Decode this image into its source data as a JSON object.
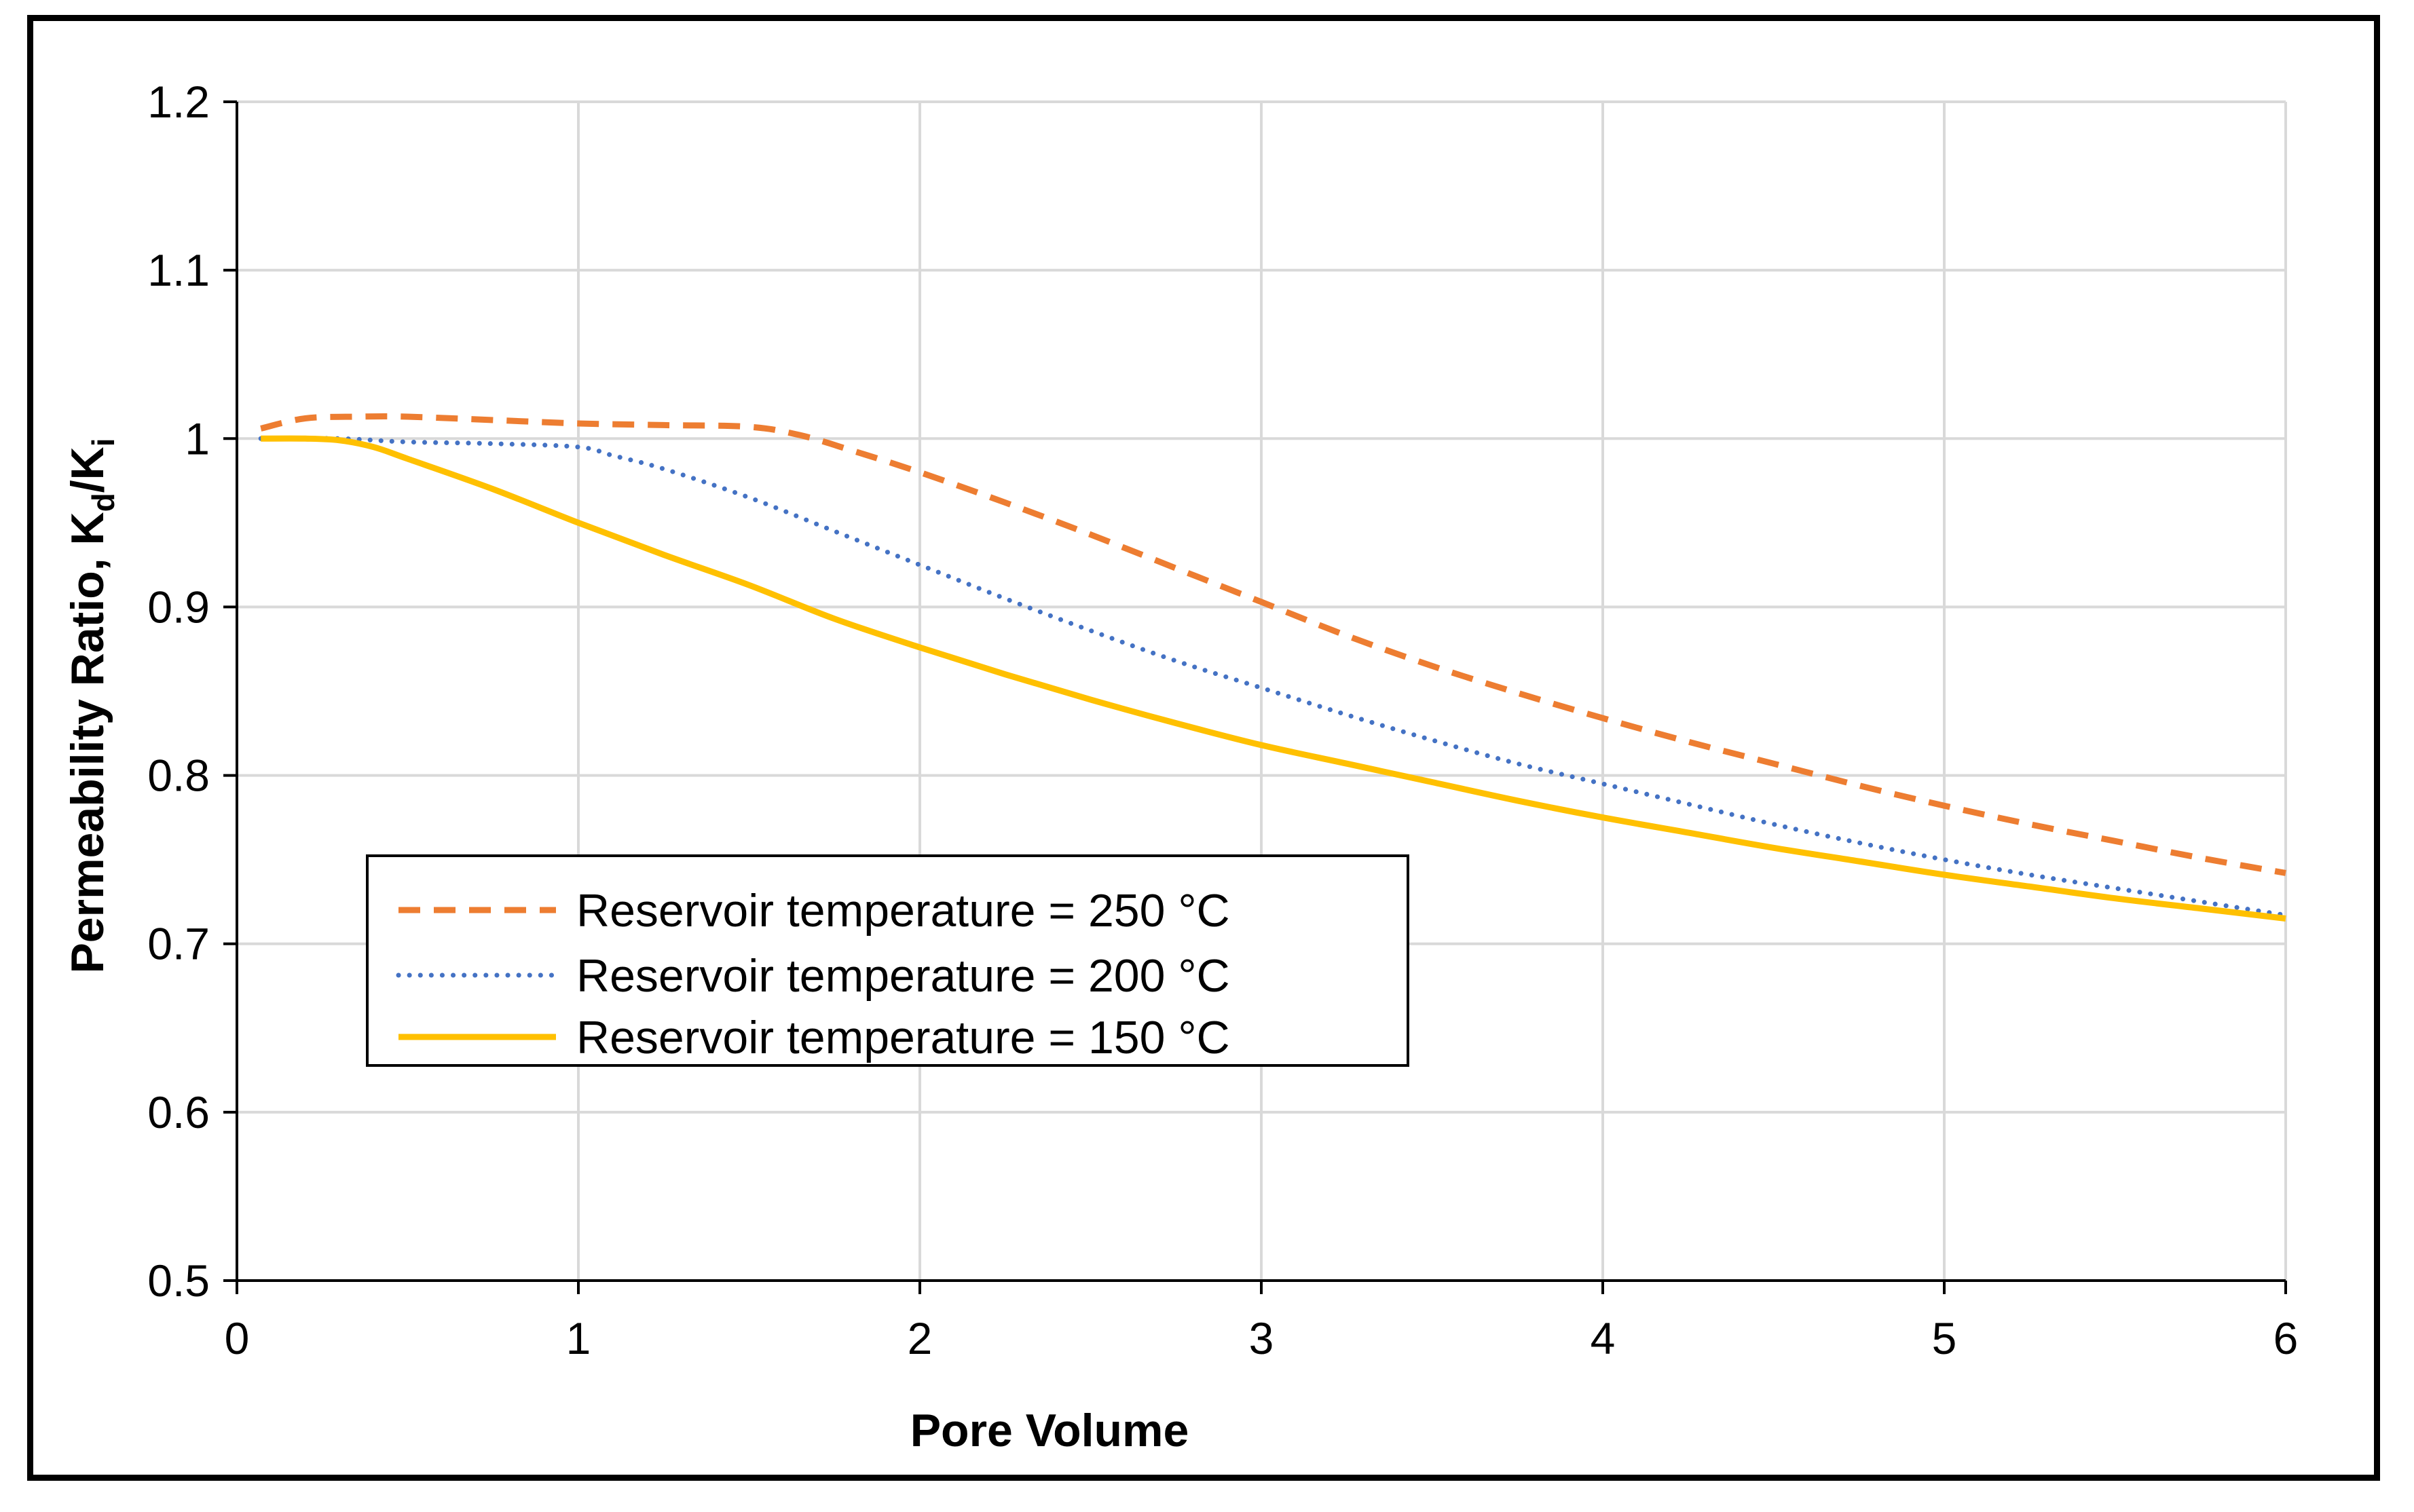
{
  "chart_data": {
    "type": "line",
    "title": "",
    "xlabel": "Pore Volume",
    "ylabel": {
      "main": "Permeability Ratio, K",
      "sub1": "d",
      "slash": "/K",
      "sub2": "i"
    },
    "xlim": [
      0,
      6
    ],
    "ylim": [
      0.5,
      1.2
    ],
    "x_ticks": [
      0,
      1,
      2,
      3,
      4,
      5,
      6
    ],
    "y_ticks": [
      0.5,
      0.6,
      0.7,
      0.8,
      0.9,
      1.0,
      1.1,
      1.2
    ],
    "x_tick_labels": [
      "0",
      "1",
      "2",
      "3",
      "4",
      "5",
      "6"
    ],
    "y_tick_labels": [
      "0.5",
      "0.6",
      "0.7",
      "0.8",
      "0.9",
      "1",
      "1.1",
      "1.2"
    ],
    "grid": true,
    "legend_position": "lower-left",
    "series": [
      {
        "name": "Reservoir temperature = 250 °C",
        "color": "#ED7D31",
        "style": "dashed",
        "x": [
          0.07,
          0.2,
          0.35,
          0.5,
          0.75,
          1.0,
          1.25,
          1.5,
          1.65,
          1.8,
          2.0,
          2.25,
          2.5,
          2.75,
          3.0,
          3.25,
          3.5,
          3.75,
          4.0,
          4.25,
          4.5,
          4.75,
          5.0,
          5.25,
          5.5,
          5.75,
          6.0
        ],
        "y": [
          1.006,
          1.012,
          1.013,
          1.013,
          1.011,
          1.009,
          1.008,
          1.007,
          1.002,
          0.993,
          0.98,
          0.962,
          0.943,
          0.923,
          0.903,
          0.883,
          0.865,
          0.849,
          0.834,
          0.82,
          0.807,
          0.794,
          0.782,
          0.771,
          0.761,
          0.751,
          0.742
        ]
      },
      {
        "name": "Reservoir temperature = 200 °C",
        "color": "#4472C4",
        "style": "dotted",
        "x": [
          0.07,
          0.3,
          0.5,
          0.75,
          1.0,
          1.1,
          1.25,
          1.5,
          1.75,
          2.0,
          2.25,
          2.5,
          2.75,
          3.0,
          3.25,
          3.5,
          3.75,
          4.0,
          4.25,
          4.5,
          4.75,
          5.0,
          5.25,
          5.5,
          5.75,
          6.0
        ],
        "y": [
          1.0,
          1.0,
          0.998,
          0.997,
          0.995,
          0.99,
          0.982,
          0.965,
          0.945,
          0.925,
          0.905,
          0.886,
          0.868,
          0.852,
          0.836,
          0.821,
          0.807,
          0.795,
          0.783,
          0.771,
          0.76,
          0.75,
          0.741,
          0.733,
          0.725,
          0.717
        ]
      },
      {
        "name": "Reservoir temperature = 150 °C",
        "color": "#FFC000",
        "style": "solid",
        "x": [
          0.07,
          0.2,
          0.3,
          0.4,
          0.5,
          0.75,
          1.0,
          1.25,
          1.5,
          1.75,
          2.0,
          2.25,
          2.5,
          2.75,
          3.0,
          3.25,
          3.5,
          3.75,
          4.0,
          4.25,
          4.5,
          4.75,
          5.0,
          5.25,
          5.5,
          5.75,
          6.0
        ],
        "y": [
          1.0,
          1.0,
          0.999,
          0.995,
          0.988,
          0.97,
          0.95,
          0.931,
          0.913,
          0.893,
          0.876,
          0.86,
          0.845,
          0.831,
          0.818,
          0.807,
          0.796,
          0.785,
          0.775,
          0.766,
          0.757,
          0.749,
          0.741,
          0.734,
          0.727,
          0.721,
          0.715
        ]
      }
    ]
  }
}
